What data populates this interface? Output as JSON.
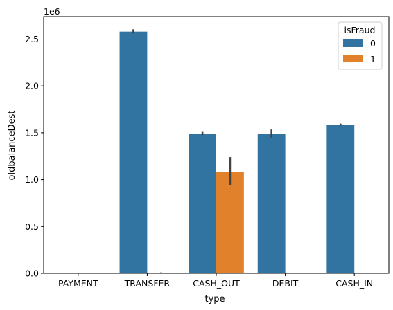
{
  "chart_data": {
    "type": "bar",
    "xlabel": "type",
    "ylabel": "oldbalanceDest",
    "y_offset_label": "1e6",
    "categories": [
      "PAYMENT",
      "TRANSFER",
      "CASH_OUT",
      "DEBIT",
      "CASH_IN"
    ],
    "ylim": [
      0,
      2740000
    ],
    "yticks": [
      0,
      500000,
      1000000,
      1500000,
      2000000,
      2500000
    ],
    "ytick_labels": [
      "0.0",
      "0.5",
      "1.0",
      "1.5",
      "2.0",
      "2.5"
    ],
    "legend": {
      "title": "isFraud",
      "position": "top-right"
    },
    "series": [
      {
        "name": "0",
        "color": "#3274a1",
        "values": [
          0,
          2580000,
          1490000,
          1490000,
          1585000
        ],
        "err_low": [
          0,
          2560000,
          1475000,
          1450000,
          1575000
        ],
        "err_high": [
          0,
          2605000,
          1510000,
          1535000,
          1598000
        ]
      },
      {
        "name": "1",
        "color": "#e1812c",
        "values": [
          0,
          3000,
          1080000,
          0,
          0
        ],
        "err_low": [
          0,
          0,
          945000,
          0,
          0
        ],
        "err_high": [
          0,
          10000,
          1240000,
          0,
          0
        ]
      }
    ]
  }
}
